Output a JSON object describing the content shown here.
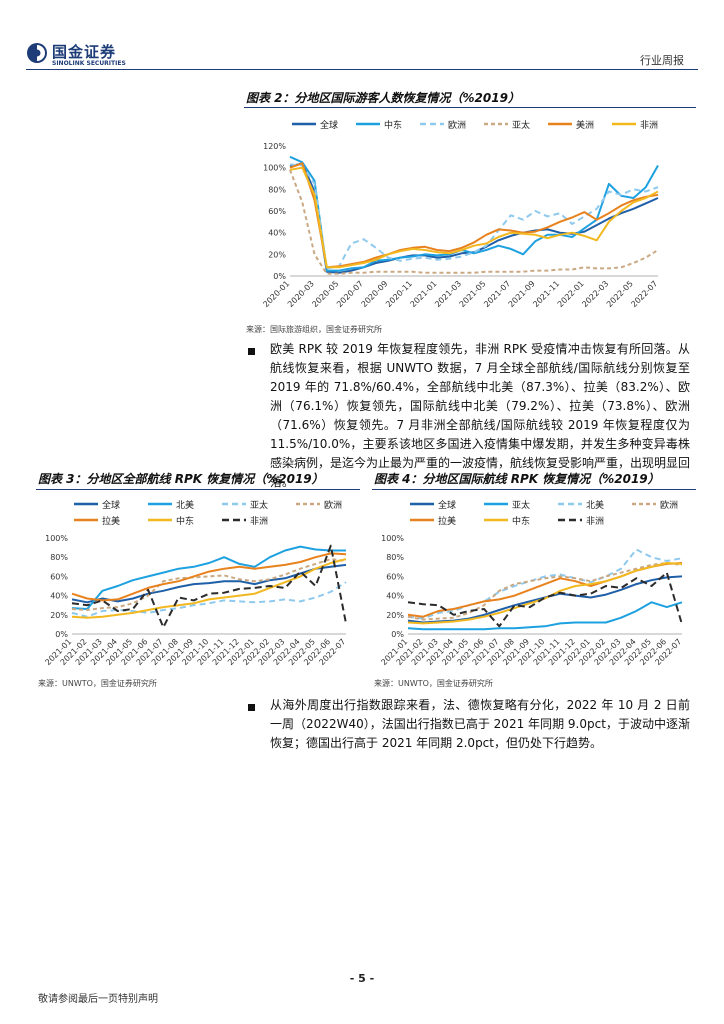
{
  "header": {
    "logo_cn": "国金证券",
    "logo_en": "SINOLINK SECURITIES",
    "report_type": "行业周报"
  },
  "figure2": {
    "title": "图表 2：分地区国际游客人数恢复情况（%2019）",
    "source": "来源：国际旅游组织，国金证券研究所"
  },
  "figure3": {
    "title": "图表 3：分地区全部航线 RPK 恢复情况（%2019）",
    "source": "来源：UNWTO，国金证券研究所"
  },
  "figure4": {
    "title": "图表 4：分地区国际航线 RPK 恢复情况（%2019）",
    "source": "来源：UNWTO，国金证券研究所"
  },
  "body": {
    "paragraph1": "欧美 RPK 较 2019 年恢复程度领先，非洲 RPK 受疫情冲击恢复有所回落。从航线恢复来看，根据 UNWTO 数据，7 月全球全部航线/国际航线分别恢复至 2019 年的 71.8%/60.4%，全部航线中北美（87.3%）、拉美（83.2%）、欧洲（76.1%）恢复领先，国际航线中北美（79.2%）、拉美（73.8%）、欧洲（71.6%）恢复领先。7 月非洲全部航线/国际航线较 2019 年恢复程度仅为 11.5%/10.0%，主要系该地区多国进入疫情集中爆发期，并发生多种变异毒株感染病例，是迄今为止最为严重的一波疫情，航线恢复受影响严重，出现明显回落。",
    "paragraph2": "从海外周度出行指数跟踪来看，法、德恢复略有分化，2022 年 10 月 2 日前一周（2022W40），法国出行指数已高于 2021 年同期 9.0pct，于波动中逐渐恢复；德国出行高于 2021 年同期 2.0pct，但仍处下行趋势。"
  },
  "footer": {
    "page": "- 5 -",
    "note": "敬请参阅最后一页特别声明"
  },
  "chart_data": [
    {
      "id": "fig2",
      "type": "line",
      "title": "分地区国际游客人数恢复情况（%2019）",
      "y_ticks": [
        "0%",
        "20%",
        "40%",
        "60%",
        "80%",
        "100%",
        "120%"
      ],
      "ylim": [
        0,
        120
      ],
      "x_ticks": [
        "2020-01",
        "2020-03",
        "2020-05",
        "2020-07",
        "2020-09",
        "2020-11",
        "2021-01",
        "2021-03",
        "2021-05",
        "2021-07",
        "2021-09",
        "2021-11",
        "2022-01",
        "2022-03",
        "2022-05",
        "2022-07"
      ],
      "series": [
        {
          "name": "全球",
          "color": "#1f5fa8",
          "dash": "",
          "values": [
            101,
            104,
            78,
            4,
            3,
            5,
            8,
            12,
            14,
            17,
            19,
            19,
            17,
            18,
            21,
            22,
            27,
            33,
            37,
            40,
            42,
            43,
            40,
            39,
            41,
            47,
            53,
            58,
            62,
            67,
            72
          ]
        },
        {
          "name": "中东",
          "color": "#1ea1e0",
          "dash": "",
          "values": [
            110,
            105,
            88,
            5,
            5,
            7,
            8,
            14,
            15,
            17,
            18,
            20,
            19,
            20,
            24,
            21,
            24,
            28,
            25,
            20,
            32,
            38,
            38,
            36,
            44,
            52,
            85,
            74,
            72,
            82,
            102
          ]
        },
        {
          "name": "欧洲",
          "color": "#8ec9ee",
          "dash": "6,4",
          "values": [
            103,
            102,
            85,
            7,
            9,
            30,
            34,
            26,
            17,
            14,
            16,
            17,
            15,
            16,
            18,
            22,
            28,
            42,
            56,
            52,
            60,
            55,
            58,
            48,
            55,
            62,
            78,
            75,
            80,
            78,
            82
          ]
        },
        {
          "name": "亚太",
          "color": "#c9a882",
          "dash": "4,3",
          "values": [
            98,
            68,
            20,
            2,
            2,
            3,
            3,
            4,
            4,
            4,
            4,
            3,
            3,
            3,
            3,
            3,
            4,
            4,
            4,
            4,
            5,
            5,
            6,
            6,
            8,
            7,
            7,
            8,
            12,
            17,
            24
          ]
        },
        {
          "name": "美洲",
          "color": "#e8821e",
          "dash": "",
          "values": [
            100,
            104,
            70,
            8,
            9,
            11,
            13,
            17,
            20,
            24,
            26,
            27,
            24,
            23,
            26,
            31,
            38,
            43,
            42,
            40,
            41,
            45,
            50,
            54,
            59,
            52,
            58,
            65,
            70,
            73,
            75
          ]
        },
        {
          "name": "非洲",
          "color": "#f2b820",
          "dash": "",
          "values": [
            98,
            100,
            75,
            8,
            8,
            10,
            12,
            15,
            20,
            23,
            25,
            24,
            22,
            21,
            24,
            28,
            30,
            36,
            40,
            39,
            38,
            35,
            38,
            40,
            37,
            33,
            50,
            60,
            68,
            72,
            78
          ]
        }
      ]
    },
    {
      "id": "fig3",
      "type": "line",
      "title": "分地区全部航线 RPK 恢复情况（%2019）",
      "y_ticks": [
        "0%",
        "20%",
        "40%",
        "60%",
        "80%",
        "100%"
      ],
      "ylim": [
        0,
        100
      ],
      "x_ticks": [
        "2021-01",
        "2021-02",
        "2021-03",
        "2021-04",
        "2021-05",
        "2021-06",
        "2021-07",
        "2021-08",
        "2021-09",
        "2021-10",
        "2021-11",
        "2021-12",
        "2022-01",
        "2022-02",
        "2022-03",
        "2022-04",
        "2022-05",
        "2022-06",
        "2022-07"
      ],
      "series": [
        {
          "name": "全球",
          "color": "#1f5fa8",
          "dash": "",
          "values": [
            36,
            33,
            37,
            34,
            37,
            42,
            45,
            49,
            52,
            53,
            55,
            55,
            52,
            56,
            58,
            63,
            68,
            70,
            72
          ]
        },
        {
          "name": "北美",
          "color": "#1ea1e0",
          "dash": "",
          "values": [
            27,
            26,
            45,
            50,
            56,
            60,
            64,
            68,
            70,
            74,
            80,
            73,
            70,
            80,
            87,
            91,
            88,
            87,
            87
          ]
        },
        {
          "name": "亚太",
          "color": "#8ec9ee",
          "dash": "6,4",
          "values": [
            22,
            18,
            24,
            25,
            24,
            22,
            25,
            27,
            30,
            32,
            35,
            34,
            33,
            34,
            36,
            34,
            38,
            44,
            54
          ]
        },
        {
          "name": "欧洲",
          "color": "#c9a882",
          "dash": "4,3",
          "values": [
            26,
            25,
            27,
            28,
            32,
            40,
            55,
            58,
            59,
            60,
            61,
            57,
            55,
            57,
            62,
            68,
            73,
            78,
            76
          ]
        },
        {
          "name": "拉美",
          "color": "#e8821e",
          "dash": "",
          "values": [
            42,
            37,
            35,
            36,
            42,
            48,
            52,
            55,
            60,
            65,
            68,
            70,
            68,
            70,
            72,
            75,
            80,
            84,
            83
          ]
        },
        {
          "name": "中东",
          "color": "#f2b820",
          "dash": "",
          "values": [
            18,
            17,
            18,
            20,
            22,
            25,
            28,
            30,
            32,
            36,
            38,
            40,
            42,
            48,
            54,
            60,
            68,
            74,
            78
          ]
        },
        {
          "name": "非洲",
          "color": "#2b2b2b",
          "dash": "7,4",
          "values": [
            32,
            30,
            35,
            24,
            26,
            46,
            7,
            38,
            35,
            42,
            43,
            47,
            48,
            50,
            48,
            65,
            50,
            92,
            11
          ]
        }
      ]
    },
    {
      "id": "fig4",
      "type": "line",
      "title": "分地区国际航线 RPK 恢复情况（%2019）",
      "y_ticks": [
        "0%",
        "20%",
        "40%",
        "60%",
        "80%",
        "100%"
      ],
      "ylim": [
        0,
        100
      ],
      "x_ticks": [
        "2021-01",
        "2021-02",
        "2021-03",
        "2021-04",
        "2021-05",
        "2021-06",
        "2021-07",
        "2021-08",
        "2021-09",
        "2021-10",
        "2021-11",
        "2021-12",
        "2022-01",
        "2022-02",
        "2022-03",
        "2022-04",
        "2022-05",
        "2022-06",
        "2022-07"
      ],
      "series": [
        {
          "name": "全球",
          "color": "#1f5fa8",
          "dash": "",
          "values": [
            14,
            12,
            13,
            14,
            16,
            20,
            25,
            30,
            34,
            38,
            42,
            40,
            38,
            41,
            46,
            52,
            56,
            59,
            60
          ]
        },
        {
          "name": "亚太",
          "color": "#1ea1e0",
          "dash": "",
          "values": [
            6,
            5,
            5,
            5,
            5,
            5,
            6,
            6,
            7,
            8,
            11,
            12,
            12,
            12,
            17,
            24,
            33,
            28,
            33
          ]
        },
        {
          "name": "北美",
          "color": "#8ec9ee",
          "dash": "6,4",
          "values": [
            18,
            16,
            22,
            24,
            30,
            34,
            44,
            50,
            55,
            60,
            62,
            58,
            54,
            60,
            68,
            88,
            80,
            76,
            79
          ]
        },
        {
          "name": "欧洲",
          "color": "#c9a882",
          "dash": "4,3",
          "values": [
            18,
            15,
            16,
            17,
            22,
            30,
            45,
            52,
            55,
            58,
            60,
            58,
            55,
            60,
            64,
            68,
            72,
            74,
            72
          ]
        },
        {
          "name": "拉美",
          "color": "#e8821e",
          "dash": "",
          "values": [
            20,
            18,
            24,
            26,
            30,
            34,
            36,
            40,
            46,
            52,
            58,
            55,
            50,
            55,
            60,
            66,
            70,
            73,
            74
          ]
        },
        {
          "name": "中东",
          "color": "#f2b820",
          "dash": "",
          "values": [
            12,
            11,
            12,
            13,
            15,
            18,
            22,
            27,
            32,
            37,
            45,
            50,
            52,
            55,
            60,
            66,
            70,
            74,
            73
          ]
        },
        {
          "name": "非洲",
          "color": "#2b2b2b",
          "dash": "7,4",
          "values": [
            33,
            31,
            30,
            20,
            24,
            26,
            8,
            30,
            28,
            38,
            43,
            40,
            42,
            50,
            48,
            58,
            50,
            64,
            10
          ]
        }
      ]
    }
  ]
}
